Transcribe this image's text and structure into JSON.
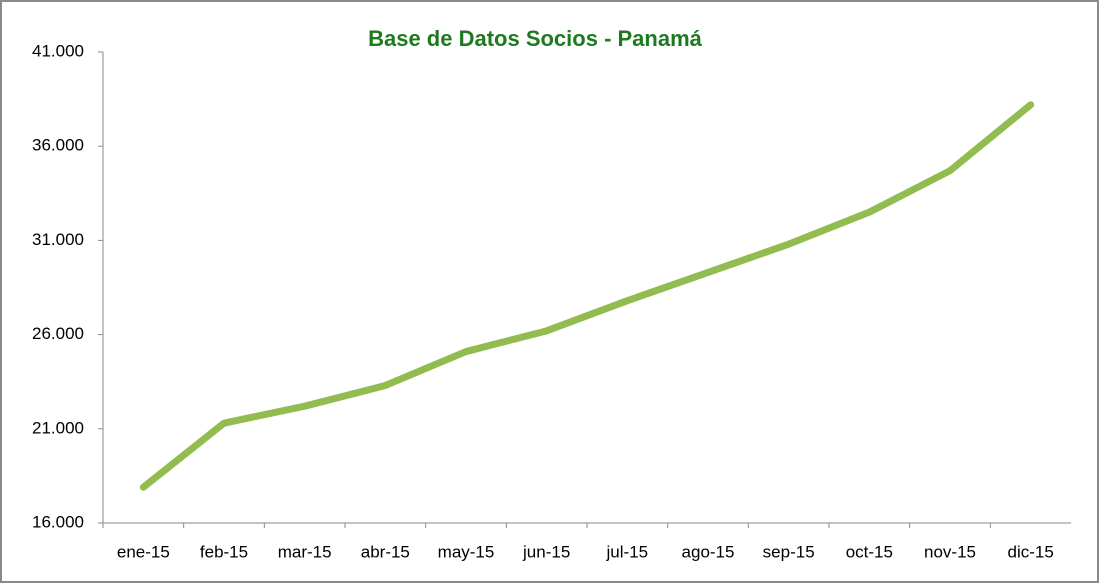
{
  "chart_data": {
    "type": "line",
    "title": "Base de Datos Socios - Panamá",
    "categories": [
      "ene-15",
      "feb-15",
      "mar-15",
      "abr-15",
      "may-15",
      "jun-15",
      "jul-15",
      "ago-15",
      "sep-15",
      "oct-15",
      "nov-15",
      "dic-15"
    ],
    "series": [
      {
        "color": "#92bb50",
        "values": [
          17900,
          21300,
          22200,
          23300,
          25100,
          26200,
          27800,
          29300,
          30800,
          32500,
          34700,
          38200
        ]
      }
    ],
    "ylim": [
      16000,
      41000
    ],
    "yticks": [
      {
        "value": 16000,
        "label": "16.000"
      },
      {
        "value": 21000,
        "label": "21.000"
      },
      {
        "value": 26000,
        "label": "26.000"
      },
      {
        "value": 31000,
        "label": "31.000"
      },
      {
        "value": 36000,
        "label": "36.000"
      },
      {
        "value": 41000,
        "label": "41.000"
      }
    ],
    "grid": false
  }
}
